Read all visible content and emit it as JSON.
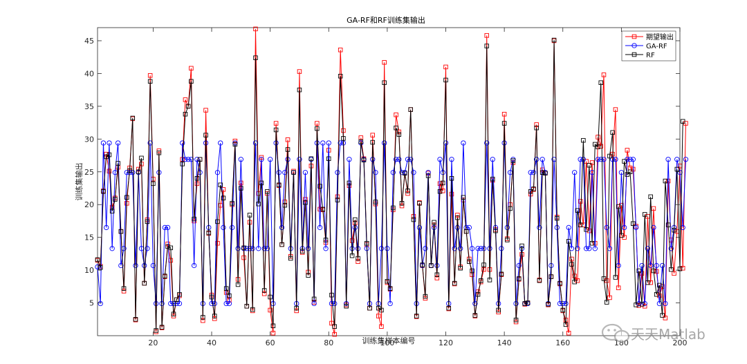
{
  "chart_data": {
    "type": "line",
    "title": "GA-RF和RF训练集输出",
    "xlabel": "训练集样本编号",
    "ylabel": "训练集输出",
    "xlim": [
      1,
      200
    ],
    "ylim": [
      0,
      47
    ],
    "xticks": [
      20,
      40,
      60,
      80,
      100,
      120,
      140,
      160,
      180,
      200
    ],
    "yticks": [
      5,
      10,
      15,
      20,
      25,
      30,
      35,
      40,
      45
    ],
    "grid": false,
    "legend_position": "top-right",
    "series": [
      {
        "name": "期望输出",
        "color": "#ff0000",
        "marker": "square",
        "values": [
          11.5,
          10.6,
          22.1,
          27.7,
          25.1,
          19.6,
          21.0,
          25.7,
          15.9,
          6.8,
          20.2,
          25.6,
          33.1,
          2.4,
          25.4,
          26.2,
          8.0,
          17.7,
          39.7,
          23.9,
          0.6,
          28.2,
          1.2,
          9.0,
          14.0,
          11.5,
          3.0,
          5.5,
          6.1,
          26.9,
          36.0,
          35.0,
          40.8,
          17.5,
          23.2,
          26.9,
          2.3,
          34.4,
          15.6,
          6.2,
          2.6,
          14.1,
          19.9,
          22.3,
          6.6,
          5.4,
          20.0,
          29.7,
          8.6,
          23.3,
          11.9,
          4.5,
          17.3,
          3.8,
          46.8,
          21.7,
          27.2,
          6.4,
          21.7,
          3.9,
          0.4,
          32.4,
          22.9,
          13.9,
          20.4,
          29.9,
          12.1,
          25.1,
          3.8,
          40.3,
          12.7,
          20.8,
          9.7,
          25.9,
          5.1,
          32.4,
          19.3,
          19.2,
          14.2,
          28.3,
          1.9,
          0.2,
          21.2,
          43.6,
          31.3,
          4.7,
          22.9,
          14.5,
          17.2,
          11.3,
          30.2,
          27.0,
          13.9,
          4.2,
          30.6,
          20.1,
          3.0,
          1.4,
          41.7,
          8.1,
          7.1,
          19.2,
          33.7,
          31.1,
          19.8,
          24.8,
          21.7,
          34.5,
          18.2,
          2.9,
          20.3,
          10.7,
          5.7,
          24.8,
          10.7,
          16.9,
          8.8,
          23.2,
          22.1,
          41.0,
          4.1,
          21.6,
          7.9,
          18.4,
          10.5,
          20.7,
          15.9,
          11.7,
          9.3,
          3.0,
          6.7,
          8.2,
          10.1,
          45.8,
          10.1,
          23.7,
          16.2,
          3.6,
          9.3,
          33.8,
          14.8,
          20.0,
          26.4,
          2.1,
          8.6,
          12.4,
          4.8,
          5.0,
          21.6,
          22.3,
          32.2,
          8.5,
          25.3,
          24.8,
          4.7,
          9.0,
          45.0,
          18.1,
          7.9,
          3.8,
          2.4,
          0.4,
          11.7,
          9.1,
          8.4,
          20.5,
          16.9,
          26.6,
          16.0,
          26.4,
          14.1,
          30.3,
          28.9,
          39.8,
          8.4,
          5.8,
          27.7,
          34.5,
          7.3,
          19.9,
          15.0,
          28.3,
          25.6,
          25.4,
          16.7,
          4.6,
          9.5,
          4.5,
          18.2,
          8.1,
          19.4,
          9.8,
          6.1,
          7.5,
          2.7,
          23.6,
          14.6,
          9.5,
          15.9,
          25.9,
          10.3,
          32.4
        ]
      },
      {
        "name": "GA-RF",
        "color": "#0000ff",
        "marker": "circle",
        "values": [
          10.5,
          4.9,
          29.4,
          16.5,
          29.4,
          13.3,
          24.9,
          29.4,
          10.7,
          13.3,
          24.9,
          24.9,
          24.9,
          10.7,
          24.9,
          13.3,
          10.7,
          13.3,
          29.4,
          10.7,
          4.9,
          24.9,
          4.9,
          16.5,
          16.5,
          4.9,
          4.9,
          4.9,
          4.9,
          29.4,
          26.9,
          26.9,
          26.9,
          10.7,
          26.9,
          24.9,
          4.9,
          29.4,
          16.5,
          4.9,
          4.9,
          24.9,
          29.4,
          16.5,
          4.9,
          4.9,
          16.5,
          29.4,
          13.3,
          26.9,
          13.3,
          13.3,
          13.3,
          13.3,
          29.4,
          13.3,
          26.9,
          13.3,
          13.3,
          26.9,
          4.9,
          29.4,
          24.9,
          16.5,
          24.9,
          26.9,
          13.3,
          24.9,
          4.9,
          26.9,
          13.3,
          24.9,
          13.3,
          26.9,
          4.9,
          29.4,
          16.5,
          29.4,
          13.3,
          29.4,
          4.9,
          4.9,
          24.9,
          29.4,
          29.4,
          4.9,
          26.9,
          13.3,
          16.5,
          13.3,
          29.4,
          26.9,
          13.3,
          4.9,
          26.9,
          24.9,
          4.9,
          13.3,
          29.4,
          13.3,
          4.9,
          24.9,
          26.9,
          26.9,
          24.9,
          24.9,
          26.9,
          26.9,
          24.9,
          4.9,
          16.5,
          10.7,
          13.3,
          24.9,
          10.7,
          16.5,
          10.7,
          26.9,
          24.9,
          29.4,
          4.9,
          26.9,
          13.3,
          16.5,
          13.3,
          29.4,
          16.5,
          16.5,
          13.3,
          4.9,
          13.3,
          13.3,
          13.3,
          29.4,
          13.3,
          26.9,
          16.5,
          4.9,
          13.3,
          29.4,
          16.5,
          24.9,
          26.9,
          4.9,
          10.7,
          13.3,
          4.9,
          4.9,
          24.9,
          24.9,
          26.9,
          16.5,
          26.9,
          24.9,
          4.9,
          10.7,
          26.9,
          16.5,
          4.9,
          4.9,
          4.9,
          16.5,
          13.3,
          24.9,
          13.3,
          26.9,
          26.9,
          13.3,
          13.3,
          24.9,
          13.3,
          26.9,
          26.9,
          26.9,
          16.5,
          13.3,
          26.9,
          26.9,
          10.7,
          24.9,
          16.5,
          26.9,
          26.9,
          26.9,
          16.5,
          4.9,
          10.7,
          4.9,
          13.3,
          10.7,
          16.5,
          10.7,
          4.9,
          10.7,
          4.9,
          26.9,
          13.3,
          16.5,
          26.9,
          24.9,
          16.5,
          26.9
        ]
      },
      {
        "name": "RF",
        "color": "#000000",
        "marker": "square",
        "values": [
          11.6,
          10.4,
          22.0,
          27.3,
          27.6,
          19.0,
          20.8,
          26.3,
          15.9,
          7.2,
          21.1,
          25.2,
          33.2,
          2.5,
          25.0,
          27.1,
          8.0,
          17.4,
          38.8,
          23.2,
          0.8,
          27.9,
          1.3,
          9.1,
          13.6,
          13.4,
          3.3,
          5.5,
          6.3,
          26.2,
          33.8,
          35.0,
          38.8,
          17.8,
          24.0,
          26.9,
          2.8,
          30.6,
          15.7,
          5.9,
          3.0,
          17.4,
          23.0,
          21.0,
          7.2,
          6.1,
          20.2,
          29.2,
          7.8,
          22.5,
          13.4,
          4.5,
          18.4,
          4.0,
          42.4,
          20.1,
          23.3,
          6.9,
          22.0,
          5.9,
          1.5,
          31.4,
          23.0,
          13.9,
          19.9,
          28.4,
          11.8,
          24.9,
          4.2,
          37.5,
          12.9,
          20.3,
          9.2,
          27.0,
          5.6,
          31.6,
          22.8,
          19.3,
          14.6,
          27.0,
          6.2,
          1.4,
          20.7,
          39.6,
          30.1,
          4.5,
          23.3,
          12.2,
          17.7,
          11.8,
          29.6,
          26.8,
          14.1,
          4.2,
          29.5,
          20.4,
          4.2,
          3.9,
          38.6,
          8.3,
          7.2,
          19.5,
          31.7,
          30.7,
          20.2,
          24.8,
          22.1,
          34.5,
          17.7,
          3.0,
          20.2,
          10.8,
          6.0,
          24.4,
          10.7,
          17.3,
          9.3,
          22.0,
          23.3,
          39.0,
          4.2,
          24.0,
          8.0,
          18.0,
          10.3,
          21.1,
          15.9,
          11.3,
          9.9,
          3.1,
          6.3,
          8.4,
          10.8,
          44.2,
          8.5,
          23.9,
          16.0,
          3.9,
          9.4,
          32.4,
          14.6,
          19.4,
          26.7,
          2.4,
          8.7,
          13.7,
          4.9,
          5.0,
          22.0,
          22.4,
          31.7,
          8.4,
          24.9,
          24.8,
          4.8,
          9.0,
          45.1,
          17.9,
          8.0,
          3.9,
          1.7,
          14.4,
          10.9,
          8.2,
          19.1,
          16.9,
          29.8,
          16.2,
          26.0,
          14.1,
          29.2,
          28.8,
          38.6,
          8.7,
          5.1,
          27.4,
          31.0,
          8.9,
          19.7,
          15.3,
          26.6,
          24.6,
          25.0,
          17.1,
          4.7,
          9.9,
          4.8,
          18.5,
          8.1,
          21.2,
          9.9,
          6.3,
          7.7,
          3.1,
          23.6,
          16.9,
          10.1,
          16.1,
          25.4,
          10.2,
          32.7
        ]
      }
    ]
  },
  "watermark": {
    "text": "天天Matlab",
    "icon": "wechat-icon"
  }
}
